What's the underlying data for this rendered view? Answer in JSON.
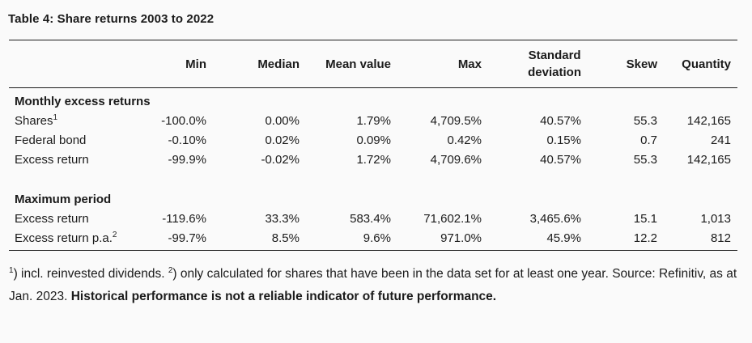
{
  "title": "Table 4: Share returns 2003 to 2022",
  "colors": {
    "background": "#fafafa",
    "text": "#1b1b1b",
    "rule": "#1b1b1b"
  },
  "table": {
    "columns": {
      "min": "Min",
      "median": "Median",
      "mean": "Mean value",
      "max": "Max",
      "std_line1": "Standard",
      "std_line2": "deviation",
      "skew": "Skew",
      "quantity": "Quantity"
    },
    "sections": [
      {
        "header": "Monthly excess returns",
        "rows": [
          {
            "label": "Shares",
            "sup": "1",
            "values": [
              "-100.0%",
              "0.00%",
              "1.79%",
              "4,709.5%",
              "40.57%",
              "55.3",
              "142,165"
            ]
          },
          {
            "label": "Federal bond",
            "sup": "",
            "values": [
              "-0.10%",
              "0.02%",
              "0.09%",
              "0.42%",
              "0.15%",
              "0.7",
              "241"
            ]
          },
          {
            "label": "Excess return",
            "sup": "",
            "values": [
              "-99.9%",
              "-0.02%",
              "1.72%",
              "4,709.6%",
              "40.57%",
              "55.3",
              "142,165"
            ]
          }
        ]
      },
      {
        "header": "Maximum period",
        "rows": [
          {
            "label": "Excess return",
            "sup": "",
            "values": [
              "-119.6%",
              "33.3%",
              "583.4%",
              "71,602.1%",
              "3,465.6%",
              "15.1",
              "1,013"
            ]
          },
          {
            "label": "Excess return p.a.",
            "sup": "2",
            "values": [
              "-99.7%",
              "8.5%",
              "9.6%",
              "971.0%",
              "45.9%",
              "12.2",
              "812"
            ]
          }
        ]
      }
    ]
  },
  "footnote": {
    "sup1": "1",
    "text1": ") incl. reinvested dividends. ",
    "sup2": "2",
    "text2": ") only calculated for shares that have been in the data set for at least one year. Source: Refinitiv, as at Jan. 2023. ",
    "bold": "Historical performance is not a reliable indicator of future performance."
  }
}
